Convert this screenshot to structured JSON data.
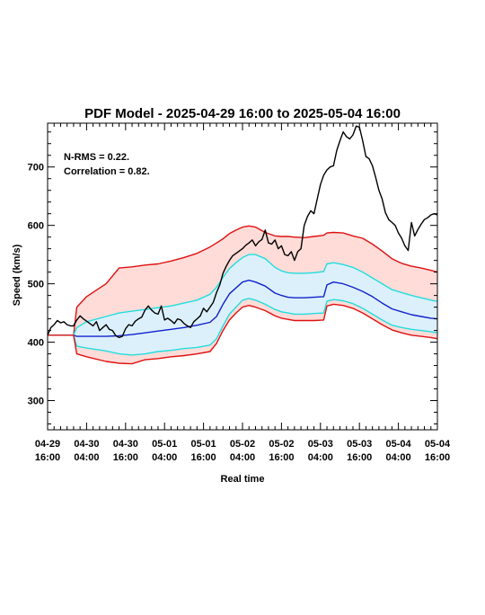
{
  "chart_data": {
    "type": "line",
    "title": "PDF Model - 2025-04-29 16:00 to 2025-05-04 16:00",
    "xlabel": "Real time",
    "ylabel": "Speed (km/s)",
    "xlim_hours": [
      0,
      120
    ],
    "ylim": [
      250,
      775
    ],
    "y_ticks": [
      300,
      400,
      500,
      600,
      700
    ],
    "x_ticks": [
      {
        "h": 0,
        "date": "04-29",
        "time": "16:00"
      },
      {
        "h": 12,
        "date": "04-30",
        "time": "04:00"
      },
      {
        "h": 24,
        "date": "04-30",
        "time": "16:00"
      },
      {
        "h": 36,
        "date": "05-01",
        "time": "04:00"
      },
      {
        "h": 48,
        "date": "05-01",
        "time": "16:00"
      },
      {
        "h": 60,
        "date": "05-02",
        "time": "04:00"
      },
      {
        "h": 72,
        "date": "05-02",
        "time": "16:00"
      },
      {
        "h": 84,
        "date": "05-03",
        "time": "04:00"
      },
      {
        "h": 96,
        "date": "05-03",
        "time": "16:00"
      },
      {
        "h": 108,
        "date": "05-04",
        "time": "04:00"
      },
      {
        "h": 120,
        "date": "05-04",
        "time": "16:00"
      }
    ],
    "annotations": [
      "N-RMS = 0.22.",
      "Correlation = 0.82."
    ],
    "x": [
      0,
      2,
      5,
      8,
      9,
      12,
      18,
      22,
      26,
      30,
      34,
      38,
      42,
      46,
      50,
      52,
      54,
      56,
      58,
      60,
      62,
      64,
      67,
      70,
      72,
      74,
      76,
      79,
      82,
      85,
      86,
      88,
      91,
      94,
      97,
      100,
      103,
      106,
      109,
      112,
      115,
      118,
      120
    ],
    "series": [
      {
        "color": "#dd1111",
        "values": [
          412,
          412,
          412,
          412,
          460,
          478,
          500,
          527,
          529,
          532,
          534,
          539,
          545,
          552,
          563,
          570,
          577,
          586,
          592,
          597,
          599,
          597,
          588,
          582,
          581,
          581,
          580,
          579,
          581,
          583,
          587,
          588,
          587,
          582,
          578,
          568,
          556,
          543,
          535,
          530,
          527,
          523,
          520
        ]
      },
      {
        "color": "#22dddd",
        "values": [
          412,
          412,
          412,
          412,
          425,
          435,
          444,
          450,
          453,
          456,
          459,
          462,
          467,
          472,
          482,
          494,
          511,
          526,
          536,
          545,
          550,
          550,
          543,
          528,
          522,
          519,
          518,
          518,
          519,
          521,
          534,
          536,
          533,
          528,
          520,
          510,
          500,
          490,
          485,
          480,
          476,
          472,
          470
        ]
      },
      {
        "color": "#1122cc",
        "values": [
          412,
          412,
          412,
          412,
          410,
          410,
          410,
          411,
          413,
          416,
          419,
          422,
          425,
          429,
          434,
          444,
          465,
          483,
          493,
          503,
          506,
          503,
          496,
          484,
          480,
          477,
          476,
          476,
          477,
          478,
          498,
          503,
          500,
          494,
          487,
          478,
          467,
          457,
          452,
          447,
          444,
          441,
          440
        ]
      },
      {
        "color": "#22dddd",
        "values": [
          412,
          412,
          412,
          412,
          393,
          390,
          385,
          380,
          378,
          380,
          384,
          386,
          389,
          391,
          395,
          406,
          428,
          448,
          460,
          472,
          475,
          472,
          465,
          456,
          452,
          450,
          448,
          448,
          449,
          450,
          470,
          473,
          471,
          466,
          458,
          448,
          438,
          429,
          425,
          422,
          420,
          418,
          416
        ]
      },
      {
        "color": "#dd1111",
        "values": [
          412,
          412,
          412,
          412,
          380,
          375,
          367,
          364,
          363,
          370,
          372,
          375,
          377,
          380,
          384,
          398,
          420,
          438,
          450,
          460,
          463,
          460,
          454,
          445,
          441,
          439,
          437,
          437,
          437,
          438,
          462,
          465,
          463,
          458,
          450,
          440,
          430,
          421,
          416,
          412,
          410,
          408,
          406
        ]
      }
    ],
    "observed": {
      "color": "#000000",
      "x": [
        0,
        1,
        2,
        3,
        4,
        5,
        6,
        7,
        8,
        9,
        10,
        11,
        12,
        13,
        14,
        15,
        16,
        17,
        18,
        19,
        20,
        21,
        22,
        23,
        24,
        25,
        26,
        27,
        28,
        29,
        30,
        31,
        32,
        33,
        34,
        35,
        36,
        37,
        38,
        39,
        40,
        41,
        42,
        43,
        44,
        45,
        46,
        47,
        48,
        49,
        50,
        51,
        52,
        53,
        54,
        55,
        56,
        57,
        58,
        59,
        60,
        61,
        62,
        63,
        64,
        65,
        66,
        67,
        68,
        69,
        70,
        71,
        72,
        73,
        74,
        75,
        76,
        77,
        78,
        79,
        80,
        81,
        82,
        83,
        84,
        85,
        86,
        87,
        88,
        89,
        90,
        91,
        92,
        93,
        94,
        95,
        96,
        97,
        98,
        99,
        100,
        101,
        102,
        103,
        104,
        105,
        106,
        107,
        108,
        109,
        110,
        111,
        112,
        113,
        114,
        115,
        116,
        117,
        118,
        119,
        120
      ],
      "values": [
        412,
        425,
        430,
        437,
        433,
        435,
        430,
        428,
        428,
        438,
        445,
        440,
        436,
        432,
        428,
        435,
        420,
        425,
        430,
        422,
        420,
        411,
        408,
        410,
        423,
        430,
        428,
        436,
        440,
        443,
        455,
        462,
        455,
        450,
        448,
        462,
        438,
        441,
        437,
        432,
        440,
        438,
        432,
        428,
        425,
        435,
        440,
        445,
        458,
        452,
        460,
        468,
        485,
        498,
        518,
        530,
        540,
        548,
        552,
        556,
        560,
        566,
        570,
        575,
        565,
        572,
        576,
        592,
        570,
        568,
        575,
        560,
        565,
        550,
        548,
        555,
        540,
        555,
        560,
        600,
        615,
        625,
        620,
        645,
        670,
        686,
        695,
        700,
        702,
        728,
        745,
        760,
        752,
        748,
        755,
        770,
        768,
        745,
        718,
        714,
        702,
        682,
        660,
        645,
        622,
        610,
        605,
        600,
        587,
        578,
        565,
        557,
        605,
        582,
        593,
        602,
        610,
        613,
        618,
        620,
        618
      ]
    },
    "band_fills": [
      "#ffdcd8",
      "#dcf0fb"
    ]
  }
}
